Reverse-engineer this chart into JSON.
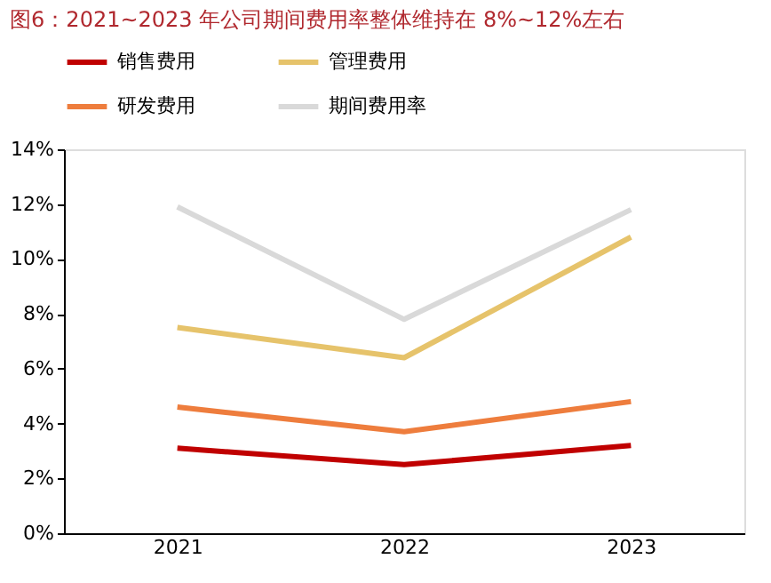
{
  "chart_data": {
    "type": "line",
    "title": "图6：2021~2023 年公司期间费用率整体维持在 8%~12%左右",
    "categories": [
      "2021",
      "2022",
      "2023"
    ],
    "series": [
      {
        "name": "销售费用",
        "color": "#c00000",
        "values": [
          3.1,
          2.5,
          3.2
        ]
      },
      {
        "name": "管理费用",
        "color": "#e6c36b",
        "values": [
          7.5,
          6.4,
          10.8
        ]
      },
      {
        "name": "研发费用",
        "color": "#ee7d3d",
        "values": [
          4.6,
          3.7,
          4.8
        ]
      },
      {
        "name": "期间费用率",
        "color": "#d9d9d9",
        "values": [
          11.9,
          7.8,
          11.8
        ]
      }
    ],
    "ylim": [
      0,
      14
    ],
    "yticks": [
      {
        "value": 0,
        "label": "0%"
      },
      {
        "value": 2,
        "label": "2%"
      },
      {
        "value": 4,
        "label": "4%"
      },
      {
        "value": 6,
        "label": "6%"
      },
      {
        "value": 8,
        "label": "8%"
      },
      {
        "value": 10,
        "label": "10%"
      },
      {
        "value": 12,
        "label": "12%"
      },
      {
        "value": 14,
        "label": "14%"
      }
    ],
    "grid": false,
    "legend": "top",
    "marker": "none",
    "line_style": "solid"
  }
}
